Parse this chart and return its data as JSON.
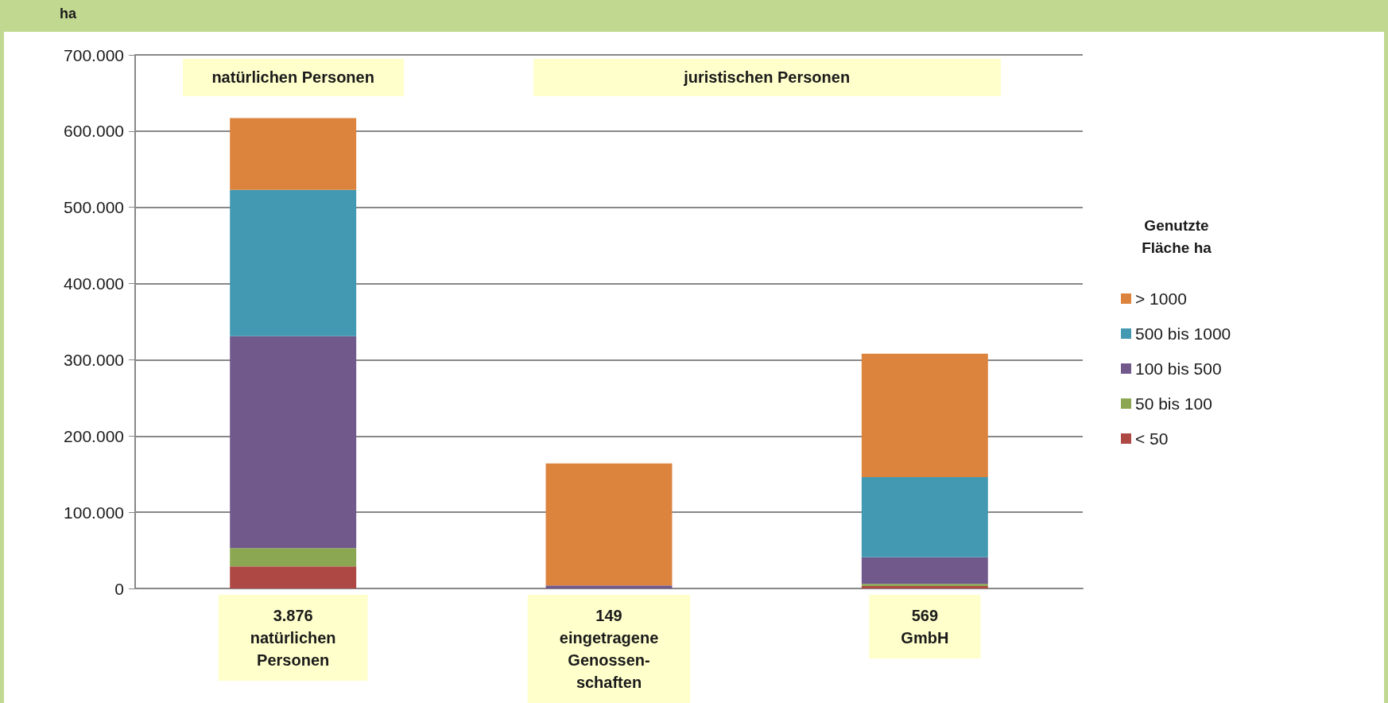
{
  "chart_data": {
    "type": "bar",
    "stacked": true,
    "ylabel": "ha",
    "legend_title": "Genutzte Fläche ha",
    "categories": [
      "3.876\nnatürlichen\nPersonen",
      "149\neingetragene\nGenossen-\nschaften",
      "569\nGmbH"
    ],
    "series": [
      {
        "name": "< 50",
        "color": "#ae4845",
        "values": [
          29000,
          0,
          3000
        ]
      },
      {
        "name": "50 bis 100",
        "color": "#8ca752",
        "values": [
          24000,
          0,
          3000
        ]
      },
      {
        "name": "100 bis 500",
        "color": "#72598c",
        "values": [
          278000,
          4000,
          35000
        ]
      },
      {
        "name": "500 bis 1000",
        "color": "#4299b1",
        "values": [
          192000,
          0,
          105000
        ]
      },
      {
        "name": "> 1000",
        "color": "#dc843e",
        "values": [
          94000,
          160000,
          162000
        ]
      }
    ],
    "ylim": [
      0,
      700000
    ],
    "yticks": [
      0,
      {
        "value": 100000,
        "label": "100.000"
      },
      {
        "value": 200000,
        "label": "200.000"
      },
      {
        "value": 300000,
        "label": "300.000"
      },
      {
        "value": 400000,
        "label": "400.000"
      },
      {
        "value": 500000,
        "label": "500.000"
      },
      {
        "value": 600000,
        "label": "600.000"
      },
      {
        "value": 700000,
        "label": "700.000"
      }
    ],
    "grid": "y",
    "legend": "right",
    "annotations": [
      "natürlichen Personen",
      "juristischen Personen"
    ]
  }
}
